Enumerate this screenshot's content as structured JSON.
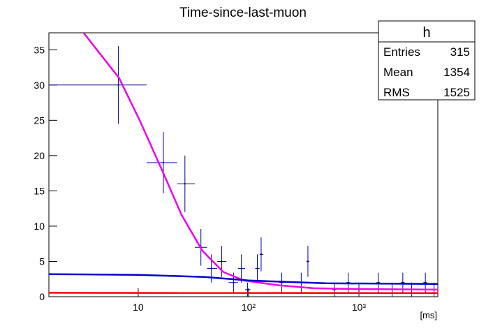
{
  "chart_data": {
    "type": "errorbar",
    "title": "Time-since-last-muon",
    "xlabel": "[ms]",
    "xscale": "log",
    "xlim": [
      1.55,
      5190
    ],
    "ylim": [
      0,
      37.4
    ],
    "xticks": [
      {
        "value": 10,
        "label": "10"
      },
      {
        "value": 100,
        "label": "10²"
      },
      {
        "value": 1000,
        "label": "10³"
      }
    ],
    "yticks": [
      0,
      5,
      10,
      15,
      20,
      25,
      30,
      35
    ],
    "series": [
      {
        "type": "points",
        "color": "#000099",
        "x": [
          6.6,
          16.9,
          26.5,
          37,
          46,
          57,
          73,
          86,
          98,
          120,
          130,
          200,
          300,
          345,
          600,
          800,
          1000,
          1500,
          2000,
          2500,
          3000,
          4000,
          4800
        ],
        "values": [
          30,
          19,
          16,
          7,
          4,
          5,
          2,
          4,
          1,
          4,
          6,
          2,
          2,
          5,
          1,
          2,
          1,
          2,
          1,
          2,
          1,
          2,
          1
        ],
        "x_low": [
          1.57,
          11.9,
          22.6,
          32.6,
          42,
          52,
          66,
          80,
          93,
          115,
          126,
          190,
          288,
          335,
          576,
          768,
          960,
          1440,
          1920,
          2400,
          2880,
          3840,
          4610
        ],
        "x_high": [
          11.9,
          22.6,
          32.6,
          42,
          52,
          63,
          80,
          93,
          104,
          126,
          136,
          210,
          312,
          355,
          624,
          832,
          1040,
          1560,
          2080,
          2600,
          3120,
          4160,
          4990
        ],
        "y_err": [
          5.5,
          4.36,
          4,
          2.6,
          2,
          2.2,
          1.4,
          2,
          1,
          2,
          2.4,
          1.4,
          1.4,
          2.2,
          1,
          1.4,
          1,
          1.4,
          1,
          1.4,
          1,
          1.4,
          1
        ]
      },
      {
        "type": "line",
        "color": "#ee00ee",
        "x": [
          3.2,
          6.7,
          10.3,
          16.9,
          24.7,
          38.2,
          59,
          91,
          190,
          390,
          810,
          1950,
          5190
        ],
        "values": [
          37.4,
          31,
          25,
          17.5,
          11.6,
          6.5,
          3.5,
          2.3,
          1.6,
          1.2,
          1.1,
          1.05,
          1.0
        ]
      },
      {
        "type": "line",
        "color": "#0000cc",
        "x": [
          1.55,
          10,
          40,
          100,
          500,
          5190
        ],
        "values": [
          3.2,
          3.1,
          2.8,
          2.3,
          1.9,
          1.8
        ]
      },
      {
        "type": "line",
        "color": "#ff0000",
        "x": [
          1.55,
          5190
        ],
        "values": [
          0.55,
          0.5
        ]
      }
    ],
    "stats": {
      "title": "h",
      "rows": [
        {
          "label": "Entries",
          "value": 315
        },
        {
          "label": "Mean",
          "value": 1354
        },
        {
          "label": "RMS",
          "value": 1525
        }
      ]
    }
  }
}
